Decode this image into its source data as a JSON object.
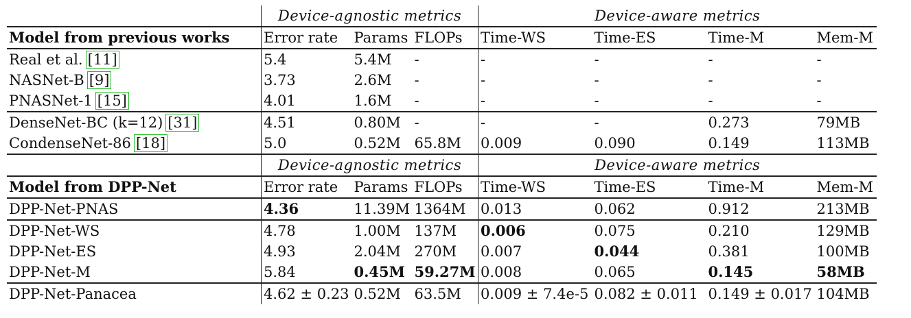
{
  "group_headers": {
    "agnostic": "Device-agnostic metrics",
    "aware": "Device-aware metrics"
  },
  "section1": {
    "title": "Model from previous works",
    "columns": [
      "Error rate",
      "Params",
      "FLOPs",
      "Time-WS",
      "Time-ES",
      "Time-M",
      "Mem-M"
    ],
    "rows": [
      {
        "model": "Real et al.",
        "ref": "[11]",
        "cells": [
          "5.4",
          "5.4M",
          "-",
          "-",
          "-",
          "-",
          "-"
        ]
      },
      {
        "model": "NASNet-B",
        "ref": "[9]",
        "cells": [
          "3.73",
          "2.6M",
          "-",
          "-",
          "-",
          "-",
          "-"
        ]
      },
      {
        "model": "PNASNet-1",
        "ref": "[15]",
        "cells": [
          "4.01",
          "1.6M",
          "-",
          "-",
          "-",
          "-",
          "-"
        ]
      },
      {
        "model": "DenseNet-BC (k=12)",
        "ref": "[31]",
        "cells": [
          "4.51",
          "0.80M",
          "-",
          "-",
          "-",
          "0.273",
          "79MB"
        ]
      },
      {
        "model": "CondenseNet-86",
        "ref": "[18]",
        "cells": [
          "5.0",
          "0.52M",
          "65.8M",
          "0.009",
          "0.090",
          "0.149",
          "113MB"
        ]
      }
    ]
  },
  "section2": {
    "title": "Model from DPP-Net",
    "columns": [
      "Error rate",
      "Params",
      "FLOPs",
      "Time-WS",
      "Time-ES",
      "Time-M",
      "Mem-M"
    ],
    "rows": [
      {
        "model": "DPP-Net-PNAS",
        "cells": [
          "4.36",
          "11.39M",
          "1364M",
          "0.013",
          "0.062",
          "0.912",
          "213MB"
        ]
      },
      {
        "model": "DPP-Net-WS",
        "cells": [
          "4.78",
          "1.00M",
          "137M",
          "0.006",
          "0.075",
          "0.210",
          "129MB"
        ]
      },
      {
        "model": "DPP-Net-ES",
        "cells": [
          "4.93",
          "2.04M",
          "270M",
          "0.007",
          "0.044",
          "0.381",
          "100MB"
        ]
      },
      {
        "model": "DPP-Net-M",
        "cells": [
          "5.84",
          "0.45M",
          "59.27M",
          "0.008",
          "0.065",
          "0.145",
          "58MB"
        ]
      },
      {
        "model": "DPP-Net-Panacea",
        "cells": [
          "4.62 ± 0.23",
          "0.52M",
          "63.5M",
          "0.009 ± 7.4e-5",
          "0.082 ± 0.011",
          "0.149 ± 0.017",
          "104MB"
        ]
      }
    ]
  }
}
